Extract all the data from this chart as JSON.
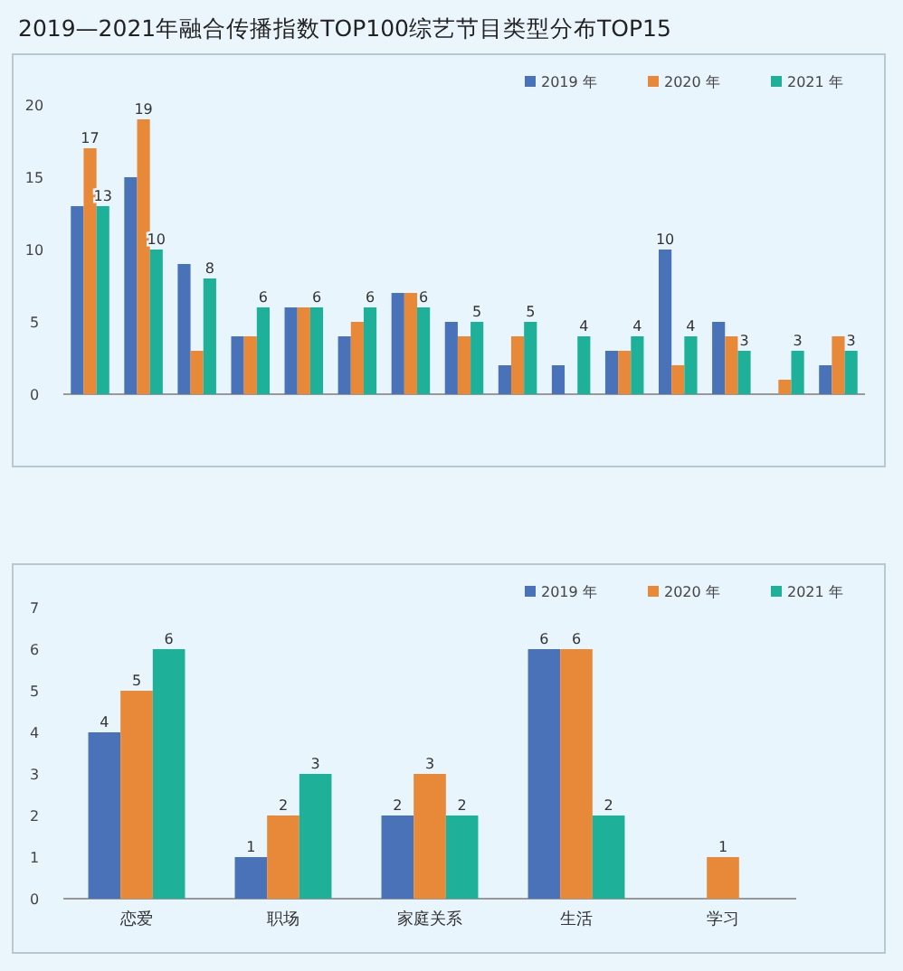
{
  "chart_data": [
    {
      "type": "bar",
      "title": "2019—2021年融合传播指数TOP100综艺节目类型分布TOP15",
      "categories": [
        null,
        null,
        null,
        null,
        null,
        null,
        null,
        null,
        null,
        null,
        null,
        null,
        null,
        null,
        null
      ],
      "ylim": [
        0,
        20
      ],
      "yticks": [
        0,
        5,
        10,
        15,
        20
      ],
      "legend": "top right",
      "series": [
        {
          "name": "2019 年",
          "color": "#4a72b8",
          "values": [
            13,
            15,
            9,
            4,
            6,
            4,
            7,
            5,
            2,
            2,
            3,
            10,
            5,
            0,
            2
          ],
          "value_labels": [
            null,
            null,
            null,
            null,
            null,
            null,
            null,
            null,
            null,
            null,
            null,
            "10",
            null,
            null,
            null
          ]
        },
        {
          "name": "2020 年",
          "color": "#e8893a",
          "values": [
            17,
            19,
            3,
            4,
            6,
            5,
            7,
            4,
            4,
            0,
            3,
            2,
            4,
            1,
            4
          ],
          "value_labels": [
            "17",
            "19",
            null,
            null,
            null,
            null,
            null,
            null,
            null,
            null,
            null,
            null,
            null,
            null,
            null
          ]
        },
        {
          "name": "2021 年",
          "color": "#1fb09a",
          "values": [
            13,
            10,
            8,
            6,
            6,
            6,
            6,
            5,
            5,
            4,
            4,
            4,
            3,
            3,
            3
          ],
          "value_labels": [
            "13",
            "10",
            "8",
            "6",
            "6",
            "6",
            "6",
            "5",
            "5",
            "4",
            "4",
            "4",
            "3",
            "3",
            "3"
          ]
        }
      ]
    },
    {
      "type": "bar",
      "categories": [
        "恋爱",
        "职场",
        "家庭关系",
        "生活",
        "学习"
      ],
      "ylim": [
        0,
        7
      ],
      "yticks": [
        0,
        1,
        2,
        3,
        4,
        5,
        6,
        7
      ],
      "legend": "top right",
      "series": [
        {
          "name": "2019 年",
          "color": "#4a72b8",
          "values": [
            4,
            1,
            2,
            6,
            0
          ],
          "value_labels": [
            "4",
            "1",
            "2",
            "6",
            null
          ]
        },
        {
          "name": "2020 年",
          "color": "#e8893a",
          "values": [
            5,
            2,
            3,
            6,
            1
          ],
          "value_labels": [
            "5",
            "2",
            "3",
            "6",
            "1"
          ]
        },
        {
          "name": "2021 年",
          "color": "#1fb09a",
          "values": [
            6,
            3,
            2,
            2,
            0
          ],
          "value_labels": [
            "6",
            "3",
            "2",
            "2",
            null
          ]
        }
      ]
    }
  ]
}
